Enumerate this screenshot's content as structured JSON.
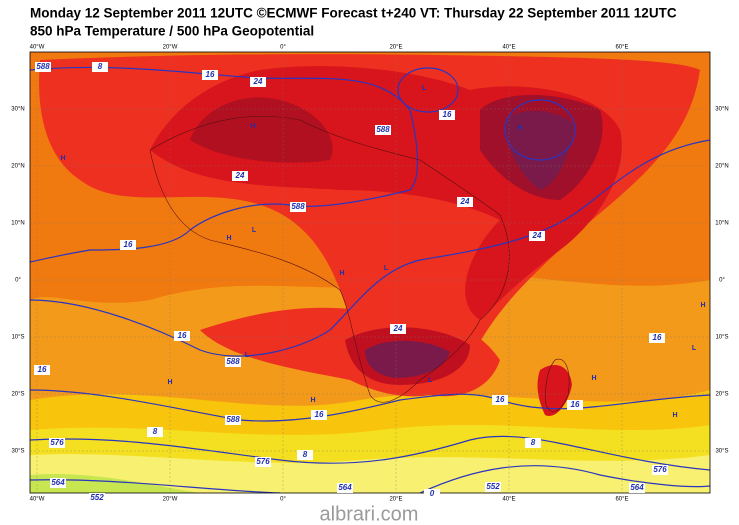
{
  "header": {
    "title": "Monday 12 September 2011 12UTC ©ECMWF Forecast t+240 VT: Thursday 22 September 2011 12UTC",
    "subtitle": "850 hPa Temperature / 500 hPa Geopotential"
  },
  "map": {
    "longitude_labels": [
      "40°W",
      "20°W",
      "0°",
      "20°E",
      "40°E",
      "60°E"
    ],
    "latitude_labels": [
      "30°N",
      "20°N",
      "10°N",
      "0°",
      "10°S",
      "20°S",
      "30°S"
    ],
    "contour_labels": [
      "588",
      "8",
      "16",
      "24",
      "16",
      "588",
      "24",
      "24",
      "24",
      "16",
      "588",
      "16",
      "24",
      "16",
      "16",
      "588",
      "16",
      "16",
      "16",
      "588",
      "8",
      "576",
      "576",
      "8",
      "8",
      "576",
      "564",
      "564",
      "564",
      "552",
      "0",
      "552"
    ],
    "pressure_centers": [
      "H",
      "L",
      "H",
      "H",
      "H",
      "L",
      "L",
      "H",
      "H",
      "L",
      "L",
      "H",
      "H",
      "L",
      "H",
      "H"
    ]
  },
  "watermark": "albrari.com"
}
